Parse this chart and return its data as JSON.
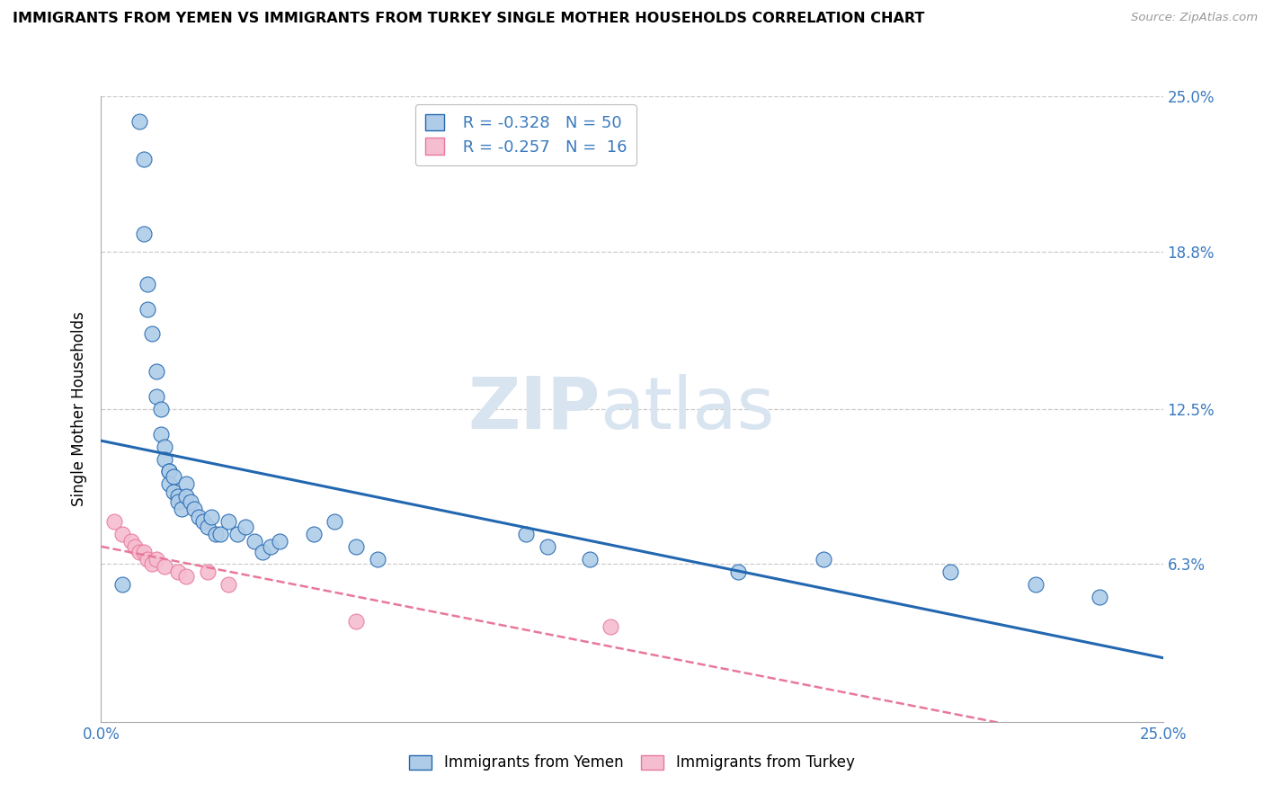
{
  "title": "IMMIGRANTS FROM YEMEN VS IMMIGRANTS FROM TURKEY SINGLE MOTHER HOUSEHOLDS CORRELATION CHART",
  "source": "Source: ZipAtlas.com",
  "ylabel": "Single Mother Households",
  "xlim": [
    0.0,
    0.25
  ],
  "ylim": [
    0.0,
    0.25
  ],
  "legend1_r": "-0.328",
  "legend1_n": "50",
  "legend2_r": "-0.257",
  "legend2_n": "16",
  "color_yemen": "#aecce8",
  "color_turkey": "#f5bdd0",
  "line_color_yemen": "#2267b0",
  "line_color_turkey": "#e8789a",
  "ytick_positions": [
    0.063,
    0.125,
    0.188,
    0.25
  ],
  "ytick_labels": [
    "6.3%",
    "12.5%",
    "18.8%",
    "25.0%"
  ],
  "yemen_x": [
    0.005,
    0.009,
    0.01,
    0.01,
    0.011,
    0.011,
    0.012,
    0.013,
    0.013,
    0.014,
    0.014,
    0.015,
    0.015,
    0.016,
    0.016,
    0.016,
    0.017,
    0.017,
    0.018,
    0.018,
    0.019,
    0.02,
    0.02,
    0.021,
    0.022,
    0.023,
    0.024,
    0.025,
    0.026,
    0.027,
    0.028,
    0.03,
    0.032,
    0.034,
    0.036,
    0.038,
    0.04,
    0.042,
    0.05,
    0.055,
    0.06,
    0.065,
    0.1,
    0.105,
    0.115,
    0.15,
    0.17,
    0.2,
    0.22,
    0.235
  ],
  "yemen_y": [
    0.055,
    0.24,
    0.225,
    0.195,
    0.175,
    0.165,
    0.155,
    0.14,
    0.13,
    0.125,
    0.115,
    0.11,
    0.105,
    0.1,
    0.1,
    0.095,
    0.098,
    0.092,
    0.09,
    0.088,
    0.085,
    0.095,
    0.09,
    0.088,
    0.085,
    0.082,
    0.08,
    0.078,
    0.082,
    0.075,
    0.075,
    0.08,
    0.075,
    0.078,
    0.072,
    0.068,
    0.07,
    0.072,
    0.075,
    0.08,
    0.07,
    0.065,
    0.075,
    0.07,
    0.065,
    0.06,
    0.065,
    0.06,
    0.055,
    0.05
  ],
  "turkey_x": [
    0.003,
    0.005,
    0.007,
    0.008,
    0.009,
    0.01,
    0.011,
    0.012,
    0.013,
    0.015,
    0.018,
    0.02,
    0.025,
    0.03,
    0.06,
    0.12
  ],
  "turkey_y": [
    0.08,
    0.075,
    0.072,
    0.07,
    0.068,
    0.068,
    0.065,
    0.063,
    0.065,
    0.062,
    0.06,
    0.058,
    0.06,
    0.055,
    0.04,
    0.038
  ]
}
